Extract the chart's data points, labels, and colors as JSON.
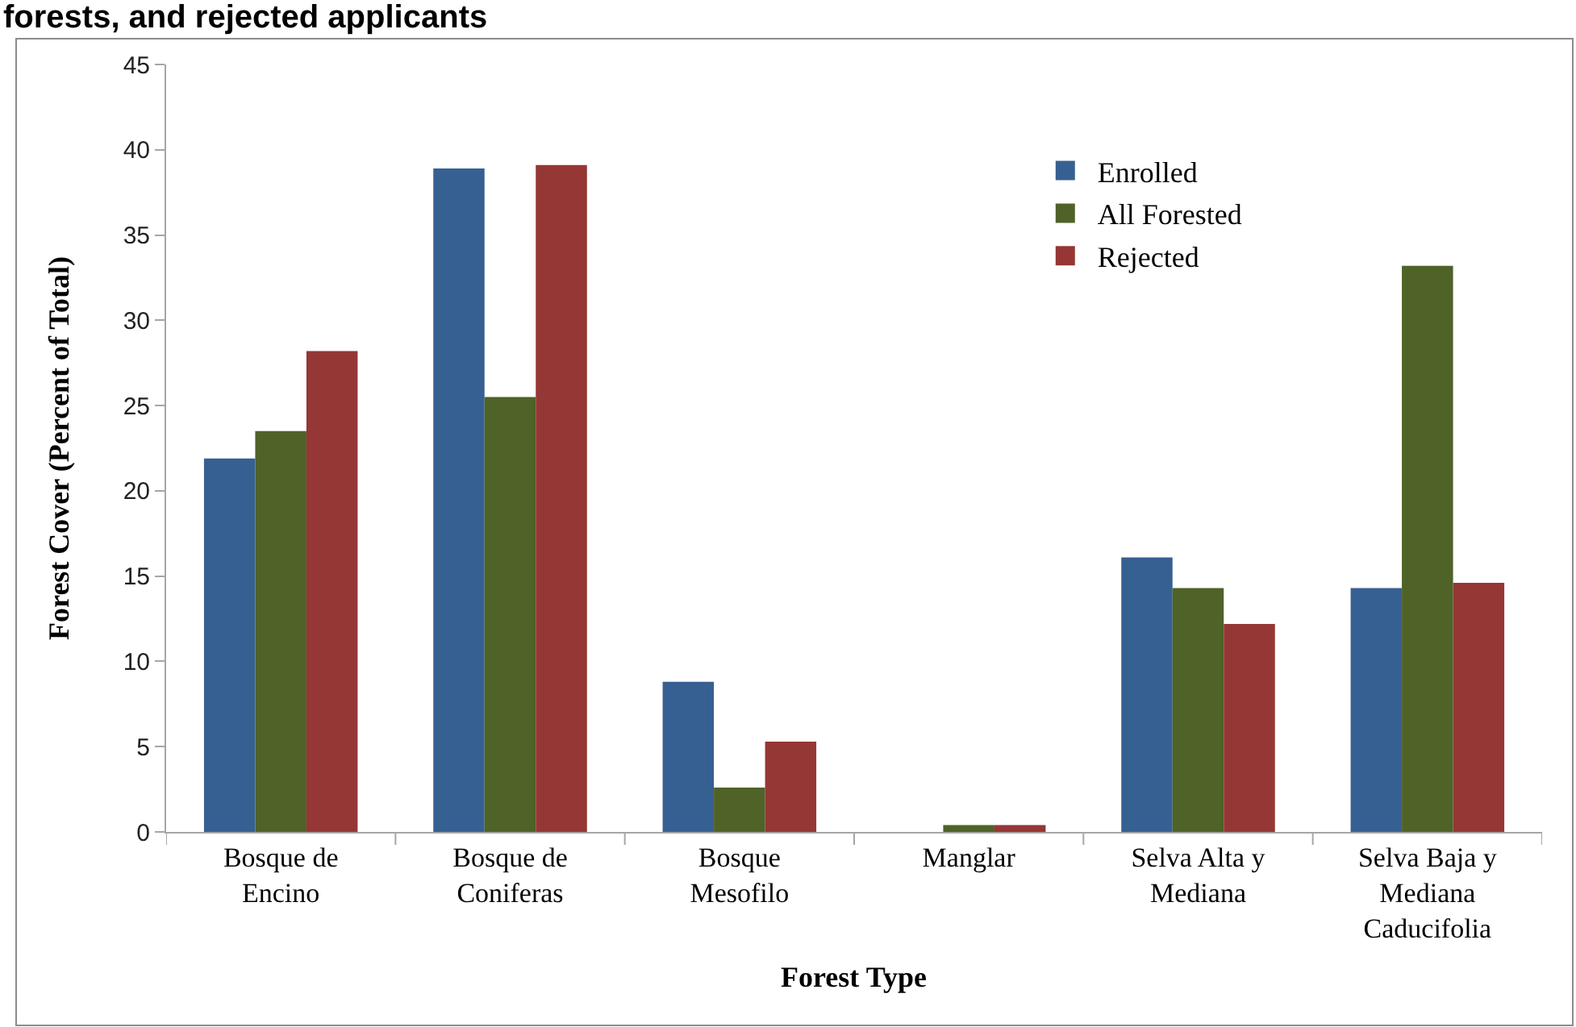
{
  "chart_data": {
    "type": "bar",
    "title": "forests, and rejected applicants",
    "xlabel": "Forest Type",
    "ylabel": "Forest Cover (Percent of Total)",
    "categories": [
      "Bosque de Encino",
      "Bosque de Coniferas",
      "Bosque Mesofilo",
      "Manglar",
      "Selva Alta y Mediana",
      "Selva Baja y Mediana Caducifolia"
    ],
    "series": [
      {
        "name": "Enrolled",
        "color": "#376092",
        "values": [
          21.9,
          38.9,
          8.8,
          0,
          16.1,
          14.3
        ]
      },
      {
        "name": "All Forested",
        "color": "#4f6228",
        "values": [
          23.5,
          25.5,
          2.6,
          0.4,
          14.3,
          33.2
        ]
      },
      {
        "name": "Rejected",
        "color": "#953735",
        "values": [
          28.2,
          39.1,
          5.3,
          0.4,
          12.2,
          14.6
        ]
      }
    ],
    "ylim": [
      0,
      45
    ],
    "yticks": [
      0,
      5,
      10,
      15,
      20,
      25,
      30,
      35,
      40,
      45
    ],
    "grid": false,
    "legend": "top right"
  }
}
